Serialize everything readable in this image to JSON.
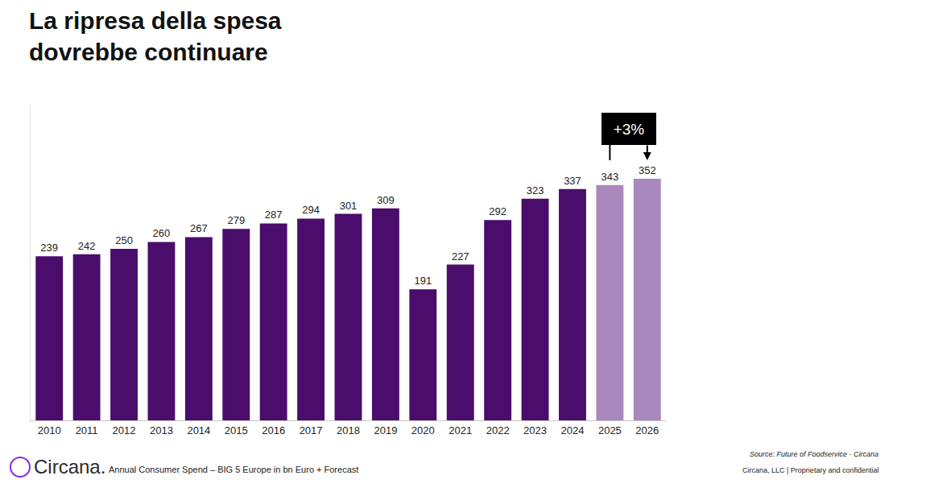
{
  "chart_data": {
    "type": "bar",
    "title": "La ripresa della spesa dovrebbe continuare",
    "categories": [
      "2010",
      "2011",
      "2012",
      "2013",
      "2014",
      "2015",
      "2016",
      "2017",
      "2018",
      "2019",
      "2020",
      "2021",
      "2022",
      "2023",
      "2024",
      "2025",
      "2026"
    ],
    "values": [
      239,
      242,
      250,
      260,
      267,
      279,
      287,
      294,
      301,
      309,
      191,
      227,
      292,
      323,
      337,
      343,
      352
    ],
    "colors": [
      "#4a0d6b",
      "#4a0d6b",
      "#4a0d6b",
      "#4a0d6b",
      "#4a0d6b",
      "#4a0d6b",
      "#4a0d6b",
      "#4a0d6b",
      "#4a0d6b",
      "#4a0d6b",
      "#4a0d6b",
      "#4a0d6b",
      "#4a0d6b",
      "#4a0d6b",
      "#4a0d6b",
      "#a888bd",
      "#a888bd"
    ],
    "ylim": [
      0,
      460
    ],
    "yticks": [],
    "grid": false,
    "data_labels": true,
    "tick_labels": "x",
    "annotations": [
      {
        "text": "+3%",
        "from": "2025",
        "to": "2026"
      }
    ],
    "logo": "Circana.",
    "caption": "Annual Consumer Spend – BIG 5 Europe in bn Euro + Forecast",
    "source": "Source: Future of Foodservice - Circana",
    "footer": "Circana, LLC | Proprietary and confidential"
  }
}
